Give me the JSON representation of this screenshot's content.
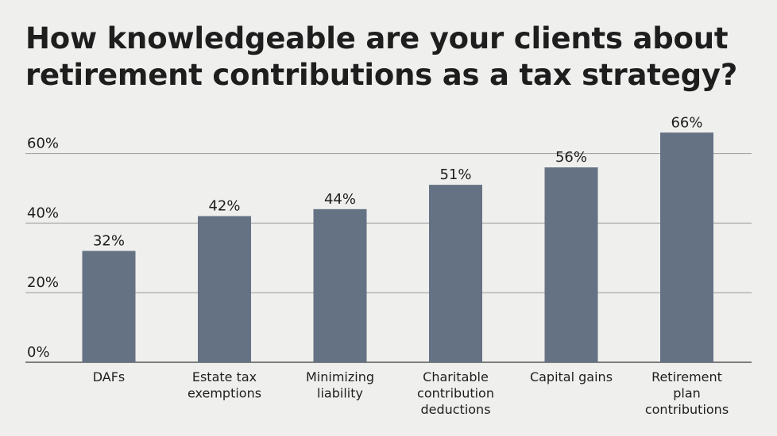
{
  "chart_data": {
    "type": "bar",
    "title": "How knowledgeable are your clients about retirement contributions as a tax strategy?",
    "categories": [
      [
        "DAFs"
      ],
      [
        "Estate tax",
        "exemptions"
      ],
      [
        "Minimizing",
        "liability"
      ],
      [
        "Charitable",
        "contribution",
        "deductions"
      ],
      [
        "Capital gains"
      ],
      [
        "Retirement",
        "plan",
        "contributions"
      ]
    ],
    "values": [
      32,
      42,
      44,
      51,
      56,
      66
    ],
    "value_labels": [
      "32%",
      "42%",
      "44%",
      "51%",
      "56%",
      "66%"
    ],
    "yticks": [
      0,
      20,
      40,
      60
    ],
    "ytick_labels": [
      "0%",
      "20%",
      "40%",
      "60%"
    ],
    "ylim": [
      0,
      70
    ],
    "grid": true,
    "colors": {
      "bar": "#657284",
      "grid": "#9a9a9a",
      "axis": "#3a3a3a",
      "background": "#efefed"
    }
  }
}
